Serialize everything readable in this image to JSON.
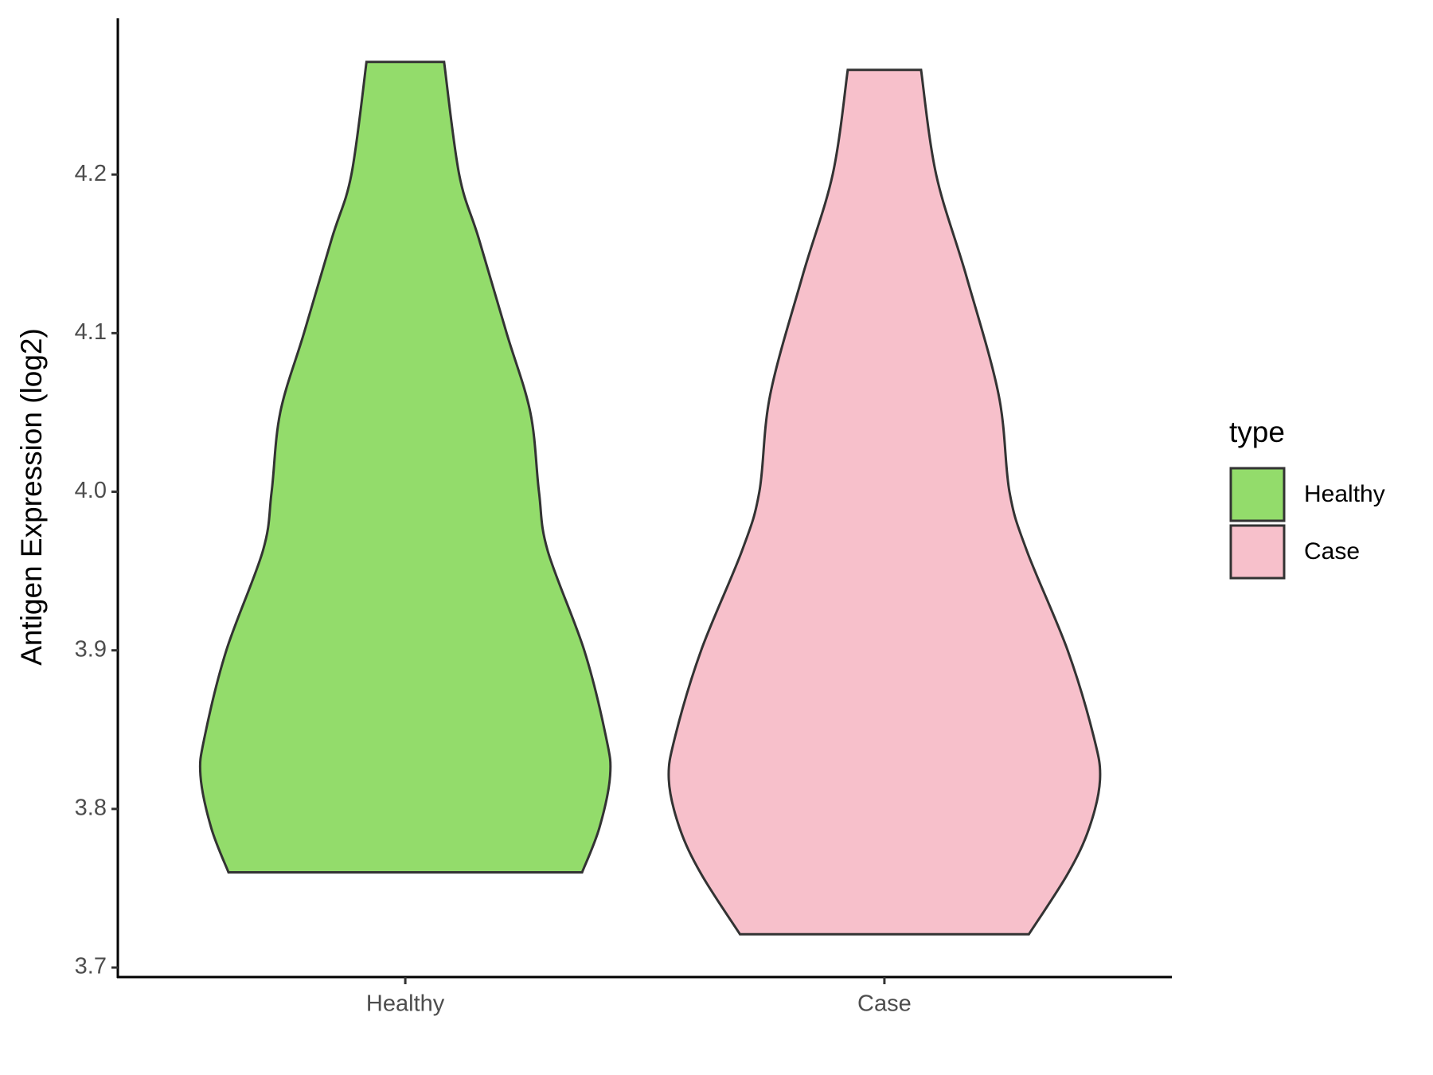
{
  "chart_data": {
    "type": "violin",
    "y_label": "Antigen Expression (log2)",
    "categories": [
      "Healthy",
      "Case"
    ],
    "ylim": [
      3.694,
      4.2985
    ],
    "yticks": [
      3.7,
      3.8,
      3.9,
      4.0,
      4.1,
      4.2
    ],
    "legend_title": "type",
    "legend_position": "right",
    "series": [
      {
        "name": "Healthy",
        "color": "#93dc6b",
        "y": [
          3.76,
          3.788,
          3.821,
          3.846,
          3.9,
          3.963,
          4.0,
          4.05,
          4.1,
          4.16,
          4.2,
          4.271
        ],
        "width": [
          0.82,
          0.9,
          0.95,
          0.93,
          0.83,
          0.66,
          0.62,
          0.58,
          0.47,
          0.34,
          0.25,
          0.18
        ]
      },
      {
        "name": "Case",
        "color": "#f7c0cb",
        "y": [
          3.721,
          3.759,
          3.788,
          3.8185,
          3.846,
          3.9,
          3.963,
          4.0,
          4.061,
          4.136,
          4.2,
          4.266
        ],
        "width": [
          0.67,
          0.85,
          0.95,
          1.0,
          0.97,
          0.85,
          0.66,
          0.58,
          0.53,
          0.38,
          0.24,
          0.17
        ]
      }
    ]
  }
}
